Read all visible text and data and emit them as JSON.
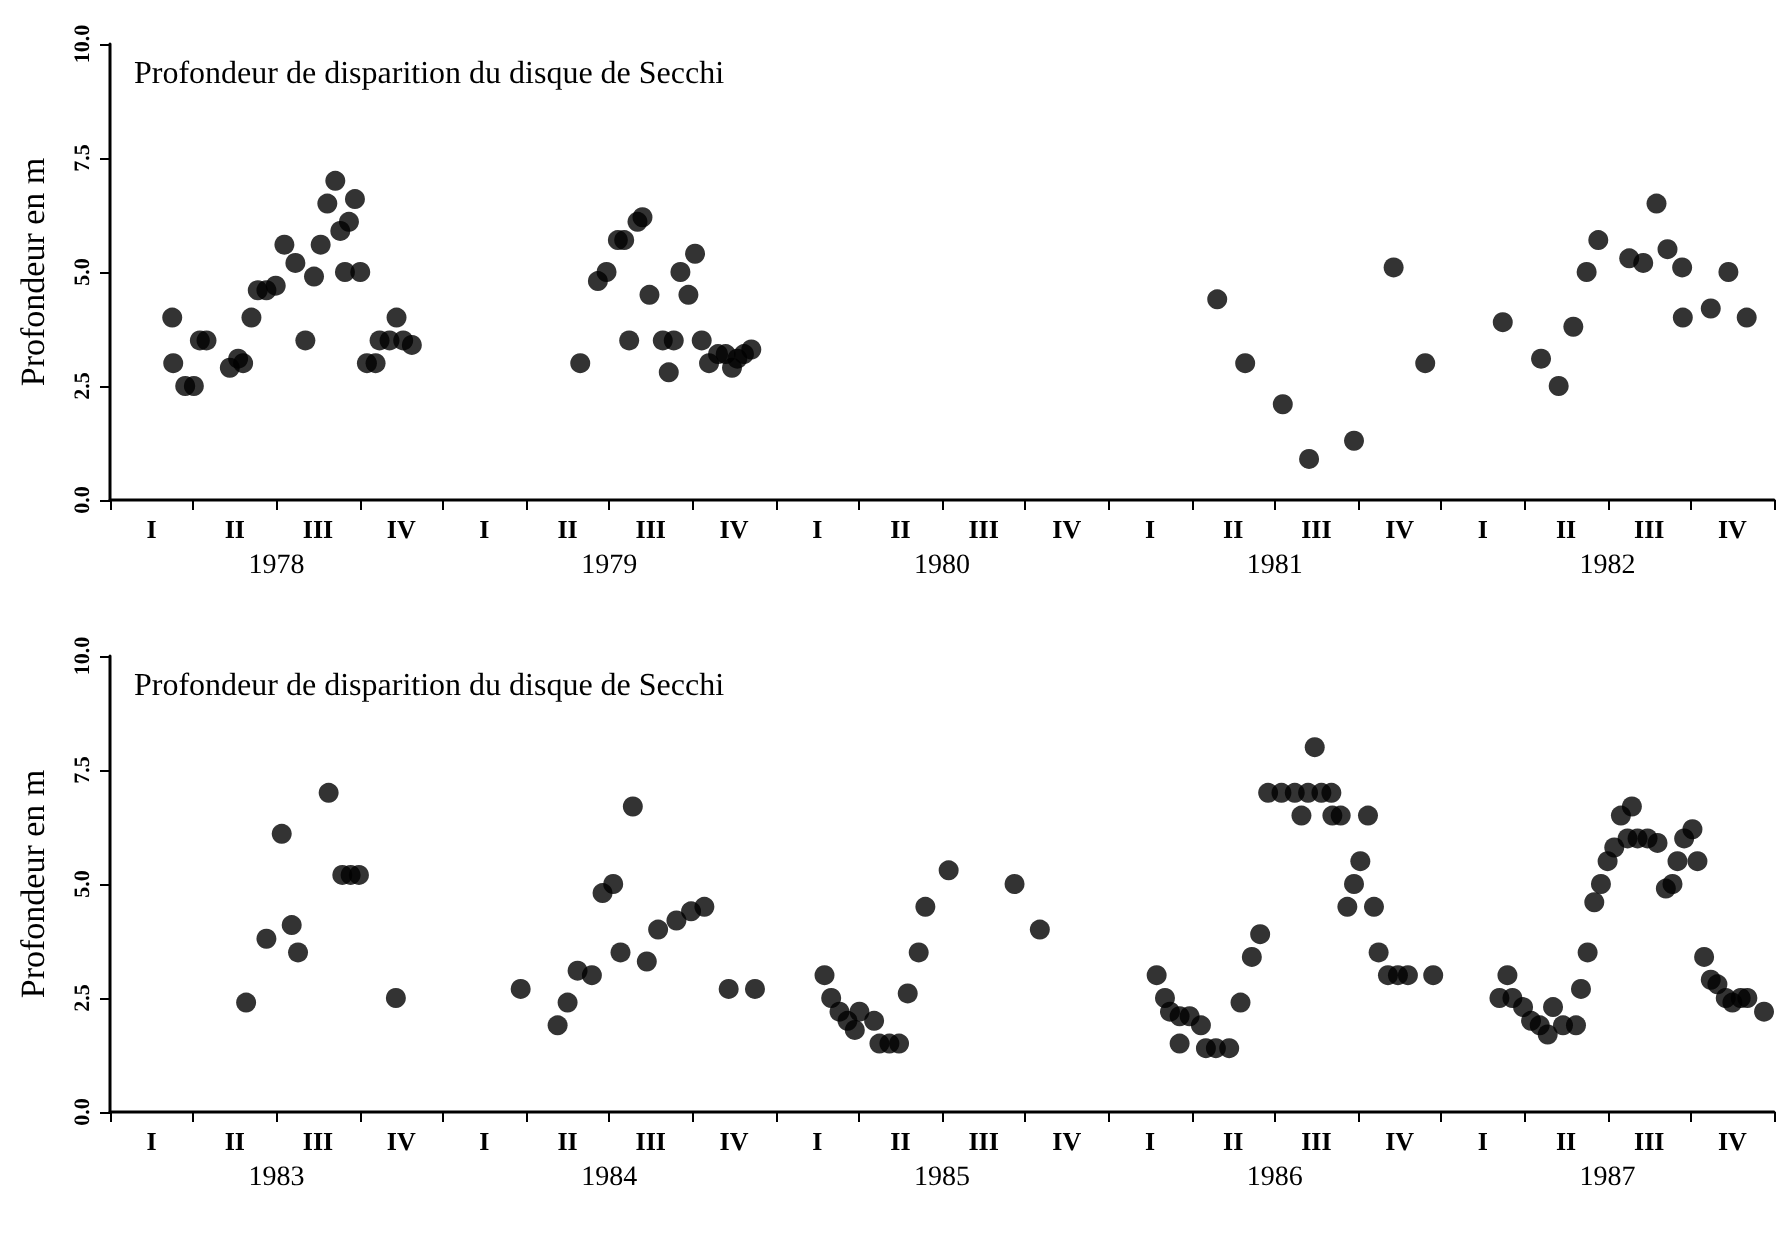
{
  "chart_data": [
    {
      "type": "scatter",
      "title": "Profondeur de disparition du disque de Secchi",
      "ylabel": "Profondeur en m",
      "color": "#000000",
      "marker": "circle",
      "xlim": [
        1978,
        1983
      ],
      "ylim": [
        0,
        10
      ],
      "yticks": [
        {
          "value": 0,
          "label": "0.0"
        },
        {
          "value": 2.5,
          "label": "2.5"
        },
        {
          "value": 5,
          "label": "5.0"
        },
        {
          "value": 7.5,
          "label": "7.5"
        },
        {
          "value": 10,
          "label": "10.0"
        }
      ],
      "xticks": [
        {
          "value": 1978,
          "label": null
        },
        {
          "value": 1978.25,
          "label": null
        },
        {
          "value": 1978.5,
          "label": null
        },
        {
          "value": 1978.75,
          "label": null
        },
        {
          "value": 1979,
          "label": null
        },
        {
          "value": 1979.25,
          "label": null
        },
        {
          "value": 1979.5,
          "label": null
        },
        {
          "value": 1979.75,
          "label": null
        },
        {
          "value": 1980,
          "label": null
        },
        {
          "value": 1980.25,
          "label": null
        },
        {
          "value": 1980.5,
          "label": null
        },
        {
          "value": 1980.75,
          "label": null
        },
        {
          "value": 1981,
          "label": null
        },
        {
          "value": 1981.25,
          "label": null
        },
        {
          "value": 1981.5,
          "label": null
        },
        {
          "value": 1981.75,
          "label": null
        },
        {
          "value": 1982,
          "label": null
        },
        {
          "value": 1982.25,
          "label": null
        },
        {
          "value": 1982.5,
          "label": null
        },
        {
          "value": 1982.75,
          "label": null
        },
        {
          "value": 1983,
          "label": null
        },
        {
          "value": 1978.5,
          "label": "1978"
        },
        {
          "value": 1979.5,
          "label": "1979"
        },
        {
          "value": 1980.5,
          "label": "1980"
        },
        {
          "value": 1981.5,
          "label": "1981"
        },
        {
          "value": 1982.5,
          "label": "1982"
        }
      ],
      "annotations": [
        "I",
        "II",
        "III",
        "IV",
        "I",
        "II",
        "III",
        "IV",
        "I",
        "II",
        "III",
        "IV",
        "I",
        "II",
        "III",
        "IV",
        "I",
        "II",
        "III",
        "IV"
      ],
      "x": [
        1978.187,
        1978.19,
        1978.226,
        1978.252,
        1978.27,
        1978.29,
        1978.36,
        1978.385,
        1978.4,
        1978.425,
        1978.444,
        1978.47,
        1978.498,
        1978.524,
        1978.557,
        1978.587,
        1978.613,
        1978.633,
        1978.653,
        1978.677,
        1978.692,
        1978.718,
        1978.736,
        1978.706,
        1978.752,
        1978.772,
        1978.798,
        1978.81,
        1978.84,
        1978.861,
        1978.881,
        1978.907,
        1979.413,
        1979.466,
        1979.492,
        1979.526,
        1979.545,
        1979.56,
        1979.585,
        1979.6,
        1979.621,
        1979.661,
        1979.694,
        1979.679,
        1979.714,
        1979.738,
        1979.758,
        1979.778,
        1979.8,
        1979.827,
        1979.85,
        1979.869,
        1979.885,
        1979.905,
        1979.927,
        1981.327,
        1981.411,
        1981.524,
        1981.603,
        1981.738,
        1981.857,
        1981.952,
        1982.185,
        1982.3,
        1982.353,
        1982.397,
        1982.437,
        1982.472,
        1982.565,
        1982.607,
        1982.647,
        1982.68,
        1982.724,
        1982.726,
        1982.81,
        1982.863,
        1982.918
      ],
      "values": [
        4.0,
        3.0,
        2.5,
        2.5,
        3.5,
        3.5,
        2.9,
        3.1,
        3.0,
        4.0,
        4.6,
        4.6,
        4.7,
        5.6,
        5.2,
        3.5,
        4.9,
        5.6,
        6.5,
        7.0,
        5.9,
        6.1,
        6.6,
        5.0,
        5.0,
        3.0,
        3.0,
        3.5,
        3.5,
        4.0,
        3.5,
        3.4,
        3.0,
        4.8,
        5.0,
        5.7,
        5.7,
        3.5,
        6.1,
        6.2,
        4.5,
        3.5,
        3.5,
        2.8,
        5.0,
        4.5,
        5.4,
        3.5,
        3.0,
        3.2,
        3.2,
        2.9,
        3.1,
        3.2,
        3.3,
        4.4,
        3.0,
        2.1,
        0.9,
        1.3,
        5.1,
        3.0,
        3.9,
        3.1,
        2.5,
        3.8,
        5.0,
        5.7,
        5.3,
        5.2,
        6.5,
        5.5,
        5.1,
        4.0,
        4.2,
        5.0,
        4.0
      ]
    },
    {
      "type": "scatter",
      "title": "Profondeur de disparition du disque de Secchi",
      "ylabel": "Profondeur en m",
      "color": "#000000",
      "marker": "circle",
      "xlim": [
        1983,
        1988
      ],
      "ylim": [
        0,
        10
      ],
      "yticks": [
        {
          "value": 0,
          "label": "0.0"
        },
        {
          "value": 2.5,
          "label": "2.5"
        },
        {
          "value": 5,
          "label": "5.0"
        },
        {
          "value": 7.5,
          "label": "7.5"
        },
        {
          "value": 10,
          "label": "10.0"
        }
      ],
      "xticks": [
        {
          "value": 1983,
          "label": null
        },
        {
          "value": 1983.25,
          "label": null
        },
        {
          "value": 1983.5,
          "label": null
        },
        {
          "value": 1983.75,
          "label": null
        },
        {
          "value": 1984,
          "label": null
        },
        {
          "value": 1984.25,
          "label": null
        },
        {
          "value": 1984.5,
          "label": null
        },
        {
          "value": 1984.75,
          "label": null
        },
        {
          "value": 1985,
          "label": null
        },
        {
          "value": 1985.25,
          "label": null
        },
        {
          "value": 1985.5,
          "label": null
        },
        {
          "value": 1985.75,
          "label": null
        },
        {
          "value": 1986,
          "label": null
        },
        {
          "value": 1986.25,
          "label": null
        },
        {
          "value": 1986.5,
          "label": null
        },
        {
          "value": 1986.75,
          "label": null
        },
        {
          "value": 1987,
          "label": null
        },
        {
          "value": 1987.25,
          "label": null
        },
        {
          "value": 1987.5,
          "label": null
        },
        {
          "value": 1987.75,
          "label": null
        },
        {
          "value": 1988,
          "label": null
        },
        {
          "value": 1983.5,
          "label": "1983"
        },
        {
          "value": 1984.5,
          "label": "1984"
        },
        {
          "value": 1985.5,
          "label": "1985"
        },
        {
          "value": 1986.5,
          "label": "1986"
        },
        {
          "value": 1987.5,
          "label": "1987"
        }
      ],
      "annotations": [
        "I",
        "II",
        "III",
        "IV",
        "I",
        "II",
        "III",
        "IV",
        "I",
        "II",
        "III",
        "IV",
        "I",
        "II",
        "III",
        "IV",
        "I",
        "II",
        "III",
        "IV"
      ],
      "x": [
        1983.409,
        1983.47,
        1983.516,
        1983.546,
        1983.565,
        1983.657,
        1983.698,
        1983.723,
        1983.748,
        1983.859,
        1984.234,
        1984.345,
        1984.375,
        1984.405,
        1984.448,
        1984.48,
        1984.512,
        1984.534,
        1984.571,
        1984.613,
        1984.647,
        1984.702,
        1984.746,
        1984.786,
        1984.859,
        1984.938,
        1985.147,
        1985.167,
        1985.192,
        1985.216,
        1985.238,
        1985.252,
        1985.296,
        1985.312,
        1985.342,
        1985.371,
        1985.397,
        1985.43,
        1985.45,
        1985.52,
        1985.718,
        1985.794,
        1986.145,
        1986.17,
        1986.185,
        1986.214,
        1986.214,
        1986.244,
        1986.278,
        1986.293,
        1986.323,
        1986.363,
        1986.397,
        1986.431,
        1986.456,
        1986.48,
        1986.52,
        1986.56,
        1986.6,
        1986.64,
        1986.67,
        1986.58,
        1986.62,
        1986.673,
        1986.698,
        1986.78,
        1986.757,
        1986.738,
        1986.718,
        1986.798,
        1986.812,
        1986.84,
        1986.87,
        1986.9,
        1986.976,
        1987.199,
        1987.175,
        1987.214,
        1987.246,
        1987.27,
        1987.296,
        1987.32,
        1987.336,
        1987.366,
        1987.405,
        1987.42,
        1987.44,
        1987.46,
        1987.48,
        1987.5,
        1987.52,
        1987.54,
        1987.573,
        1987.56,
        1987.59,
        1987.62,
        1987.65,
        1987.675,
        1987.695,
        1987.71,
        1987.73,
        1987.755,
        1987.77,
        1987.79,
        1987.81,
        1987.83,
        1987.855,
        1987.875,
        1987.9,
        1987.92,
        1987.97
      ],
      "values": [
        2.4,
        3.8,
        6.1,
        4.1,
        3.5,
        7.0,
        5.2,
        5.2,
        5.2,
        2.5,
        2.7,
        1.9,
        2.4,
        3.1,
        3.0,
        4.8,
        5.0,
        3.5,
        6.7,
        3.3,
        4.0,
        4.2,
        4.4,
        4.5,
        2.7,
        2.7,
        3.0,
        2.5,
        2.2,
        2.0,
        1.8,
        2.2,
        2.0,
        1.5,
        1.5,
        1.5,
        2.6,
        3.5,
        4.5,
        5.3,
        5.0,
        4.0,
        3.0,
        2.5,
        2.2,
        1.5,
        2.1,
        2.1,
        1.9,
        1.4,
        1.4,
        1.4,
        2.4,
        3.4,
        3.9,
        7.0,
        7.0,
        7.0,
        7.0,
        7.0,
        7.0,
        6.5,
        8.0,
        6.5,
        6.5,
        6.5,
        5.5,
        5.0,
        4.5,
        4.5,
        3.5,
        3.0,
        3.0,
        3.0,
        3.0,
        3.0,
        2.5,
        2.5,
        2.3,
        2.0,
        1.9,
        1.7,
        2.3,
        1.9,
        1.9,
        2.7,
        3.5,
        4.6,
        5.0,
        5.5,
        5.8,
        6.5,
        6.7,
        6.0,
        6.0,
        6.0,
        5.9,
        4.9,
        5.0,
        5.5,
        6.0,
        6.2,
        5.5,
        3.4,
        2.9,
        2.8,
        2.5,
        2.4,
        2.5,
        2.5,
        2.2
      ]
    }
  ]
}
